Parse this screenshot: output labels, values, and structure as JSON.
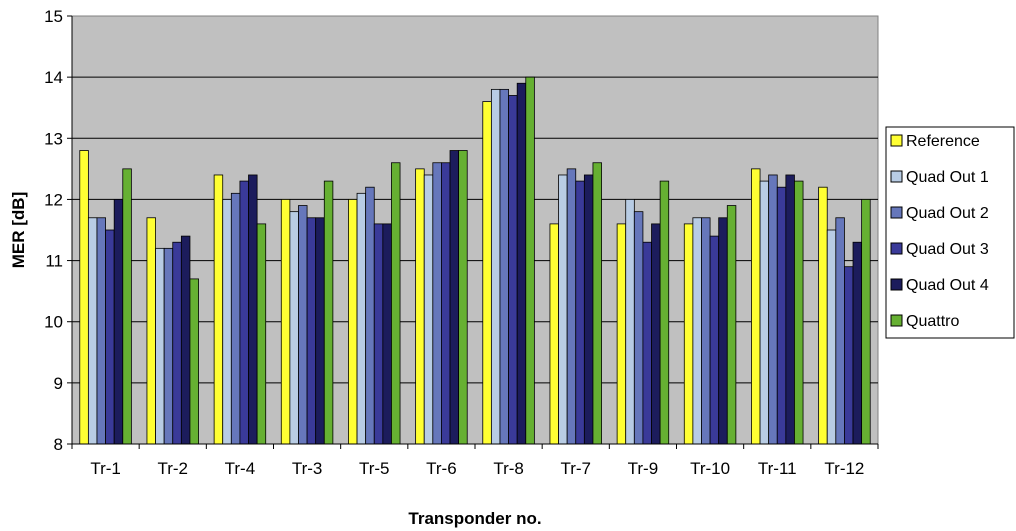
{
  "chart_data": {
    "type": "bar",
    "title": "",
    "xlabel": "Transponder no.",
    "ylabel": "MER [dB]",
    "ylim": [
      8,
      15
    ],
    "yticks": [
      8,
      9,
      10,
      11,
      12,
      13,
      14,
      15
    ],
    "grid": true,
    "legend_position": "right",
    "plot_background": "#c0c0c0",
    "categories": [
      "Tr-1",
      "Tr-2",
      "Tr-4",
      "Tr-3",
      "Tr-5",
      "Tr-6",
      "Tr-8",
      "Tr-7",
      "Tr-9",
      "Tr-10",
      "Tr-11",
      "Tr-12"
    ],
    "series": [
      {
        "name": "Reference",
        "color": "#ffff33",
        "values": [
          12.8,
          11.7,
          12.4,
          12.0,
          12.0,
          12.5,
          13.6,
          11.6,
          11.6,
          11.6,
          12.5,
          12.2
        ]
      },
      {
        "name": "Quad Out 1",
        "color": "#b8cce4",
        "values": [
          11.7,
          11.2,
          12.0,
          11.8,
          12.1,
          12.4,
          13.8,
          12.4,
          12.0,
          11.7,
          12.3,
          11.5
        ]
      },
      {
        "name": "Quad Out 2",
        "color": "#6677bb",
        "values": [
          11.7,
          11.2,
          12.1,
          11.9,
          12.2,
          12.6,
          13.8,
          12.5,
          11.8,
          11.7,
          12.4,
          11.7
        ]
      },
      {
        "name": "Quad Out 3",
        "color": "#3a3a99",
        "values": [
          11.5,
          11.3,
          12.3,
          11.7,
          11.6,
          12.6,
          13.7,
          12.3,
          11.3,
          11.4,
          12.2,
          10.9
        ]
      },
      {
        "name": "Quad Out 4",
        "color": "#1c1c5c",
        "values": [
          12.0,
          11.4,
          12.4,
          11.7,
          11.6,
          12.8,
          13.9,
          12.4,
          11.6,
          11.7,
          12.4,
          11.3
        ]
      },
      {
        "name": "Quattro",
        "color": "#66b032",
        "values": [
          12.5,
          10.7,
          11.6,
          12.3,
          12.6,
          12.8,
          14.0,
          12.6,
          12.3,
          11.9,
          12.3,
          12.0
        ]
      }
    ]
  }
}
